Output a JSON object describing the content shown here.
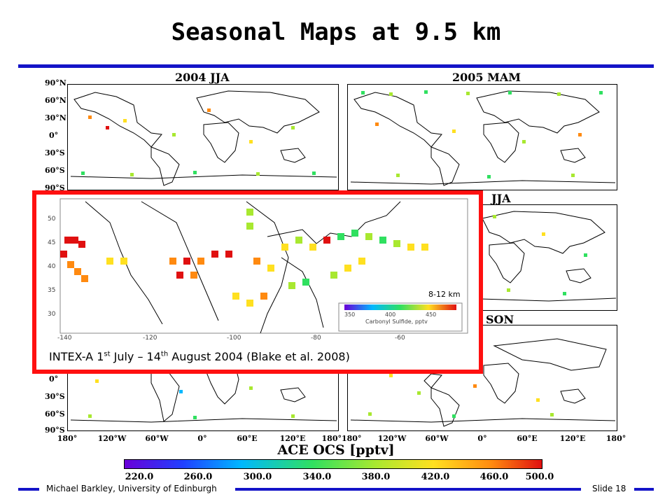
{
  "slide": {
    "title": "Seasonal Maps at 9.5 km",
    "footer_left": "Michael Barkley, University of Edinburgh",
    "footer_right": "Slide 18"
  },
  "maps": {
    "titles": [
      "2004 JJA",
      "2005 MAM",
      "JJA",
      "SON"
    ],
    "lat_labels": [
      "90°N",
      "60°N",
      "30°N",
      "0°",
      "30°S",
      "60°S",
      "90°S"
    ],
    "lon_labels": [
      "180°",
      "120°W",
      "60°W",
      "0°",
      "60°E",
      "120°E",
      "180°180°",
      "120°W",
      "60°W",
      "0°",
      "60°E",
      "120°E",
      "180°"
    ]
  },
  "colorbar": {
    "title": "ACE OCS [pptv]",
    "ticks": [
      "220.0",
      "260.0",
      "300.0",
      "340.0",
      "380.0",
      "420.0",
      "460.0",
      "500.0"
    ],
    "colors": [
      "#6a00d8",
      "#2040ff",
      "#00b8ff",
      "#30e060",
      "#a8e830",
      "#ffe020",
      "#ff8a10",
      "#e01010"
    ]
  },
  "inset": {
    "caption_pre": "INTEX-A 1",
    "caption_sup1": "st",
    "caption_mid": " July – 14",
    "caption_sup2": "th",
    "caption_post": " August 2004 (Blake et al. 2008)",
    "y_ticks": [
      "50",
      "45",
      "40",
      "35",
      "30"
    ],
    "x_ticks": [
      "-140",
      "-120",
      "-100",
      "-80",
      "-60"
    ],
    "legend_title": "8-12 km",
    "legend_ticks": [
      "350",
      "400",
      "450"
    ],
    "legend_label": "Carbonyl Sulfide, pptv",
    "border_color": "#ff1010"
  }
}
